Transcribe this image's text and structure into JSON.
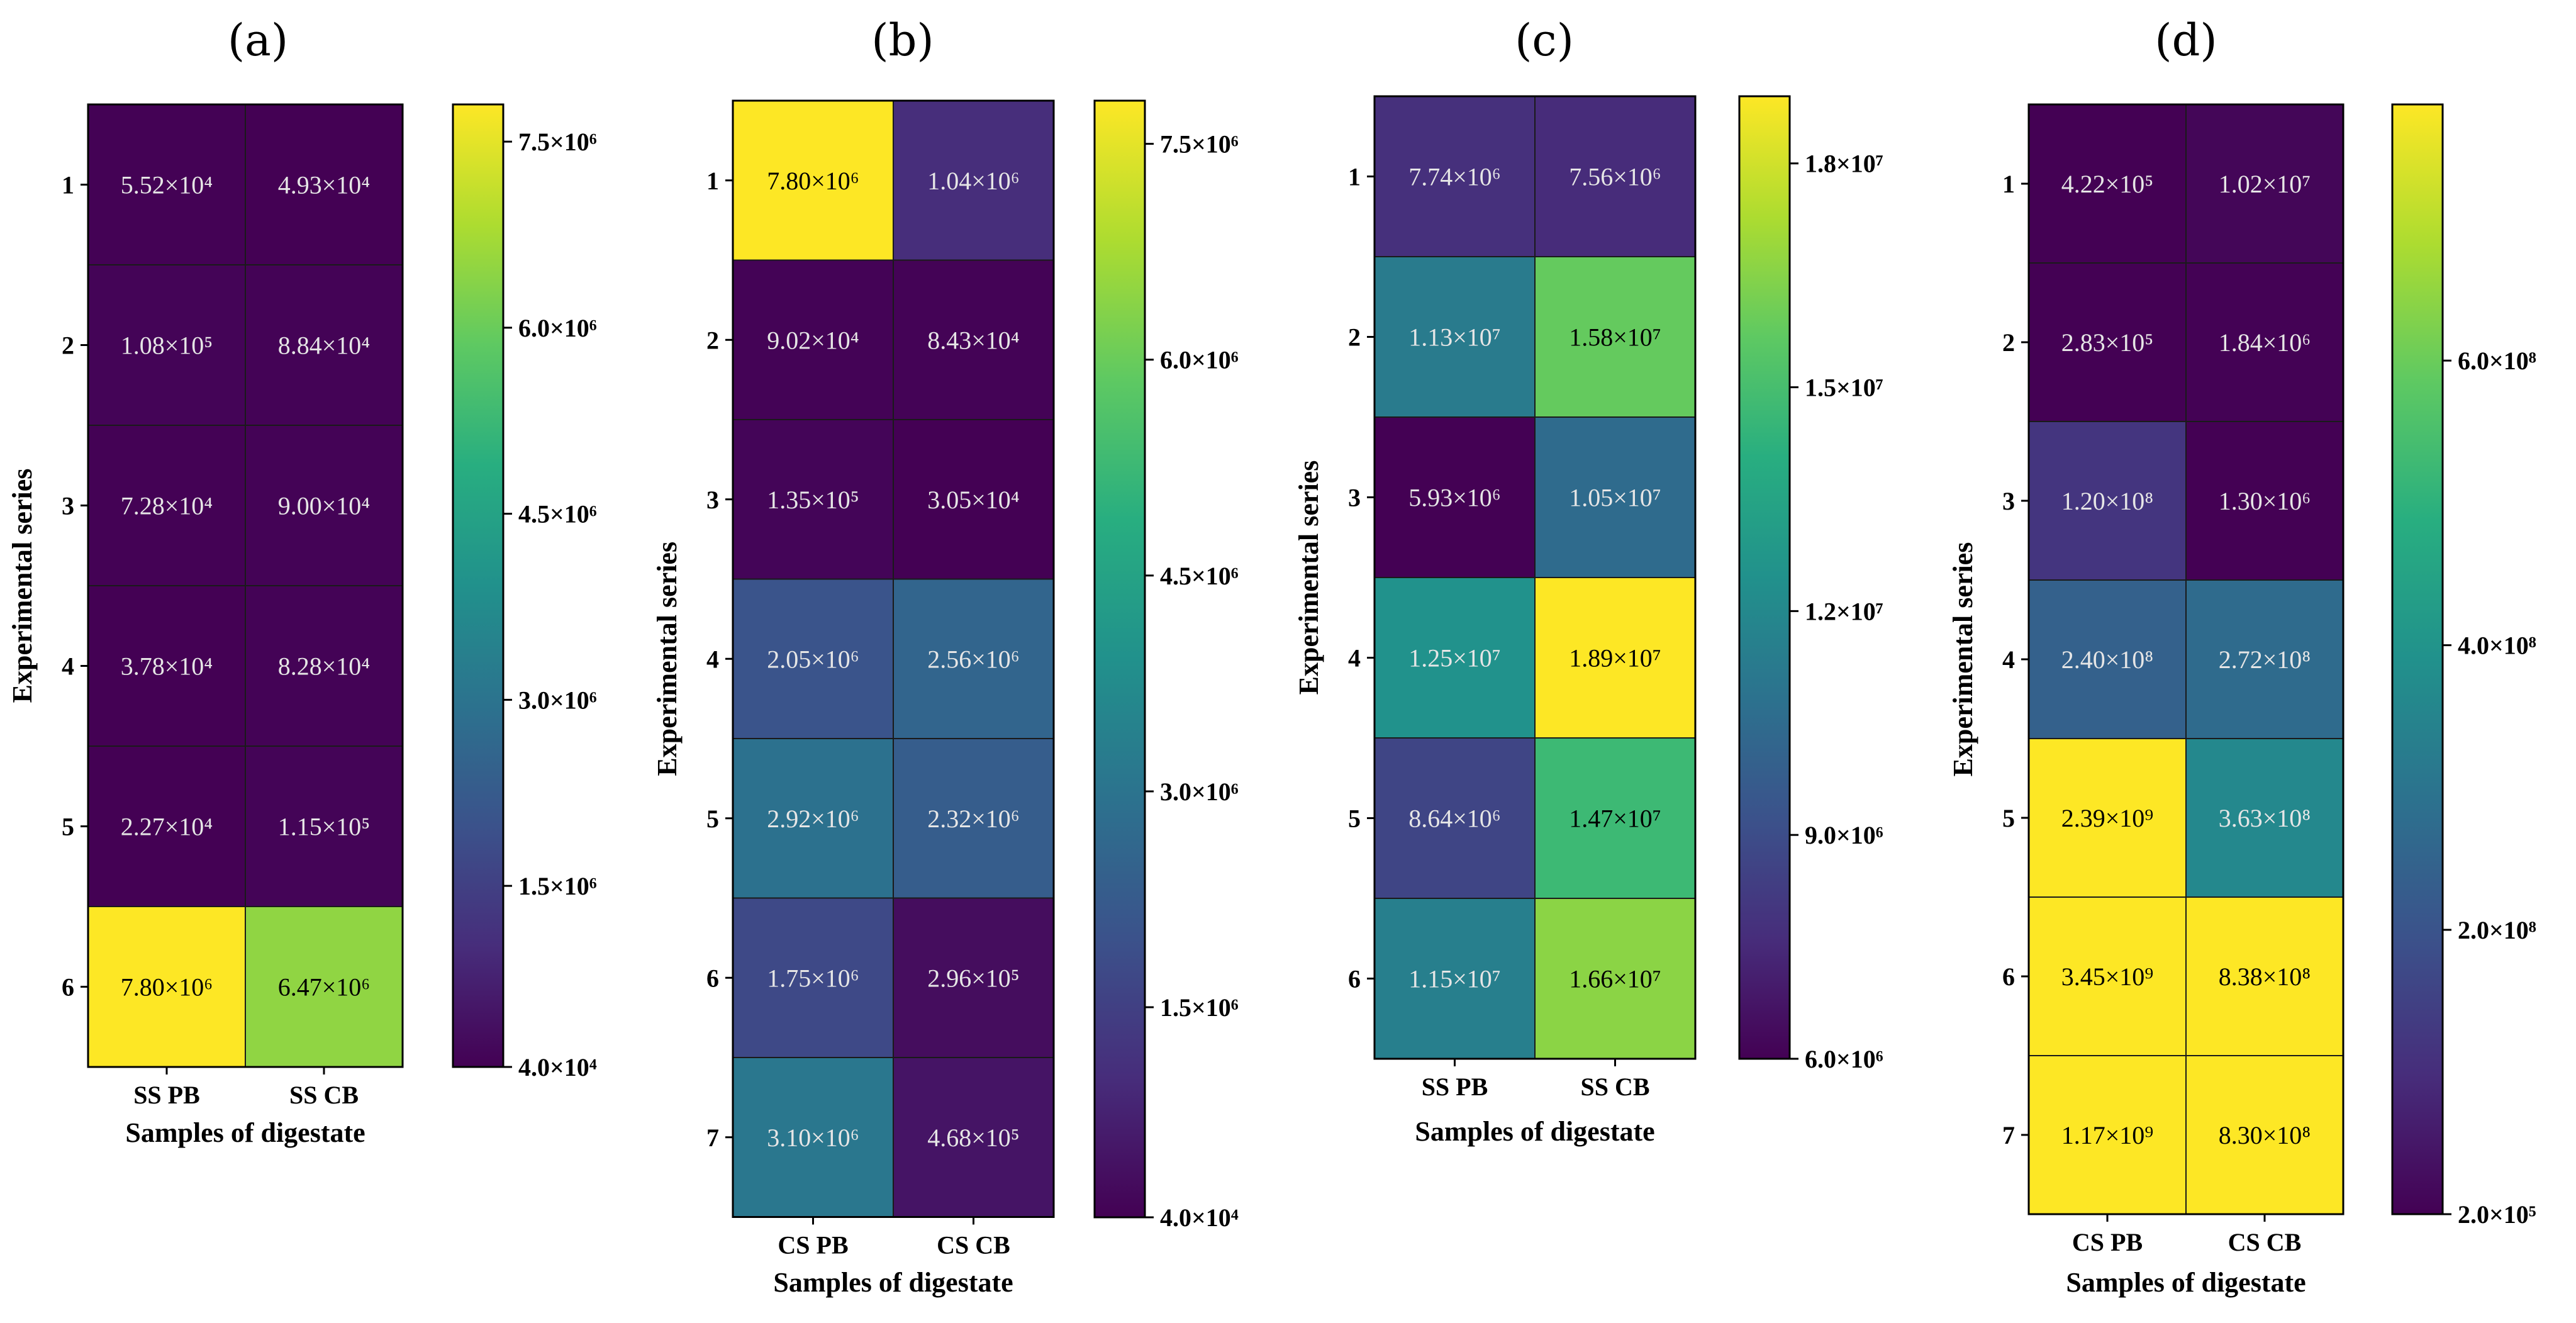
{
  "chart_data": [
    {
      "type": "heatmap",
      "title": "(a)",
      "xlabel": "Samples of digestate",
      "ylabel": "Experimental series",
      "x_categories": [
        "SS PB",
        "SS CB"
      ],
      "y_categories": [
        "1",
        "2",
        "3",
        "4",
        "5",
        "6"
      ],
      "values": [
        [
          55200,
          49300
        ],
        [
          108000,
          88400
        ],
        [
          72800,
          90000
        ],
        [
          37800,
          82800
        ],
        [
          22700,
          115000
        ],
        [
          7800000,
          6470000
        ]
      ],
      "value_labels": [
        [
          "5.52×10⁴",
          "4.93×10⁴"
        ],
        [
          "1.08×10⁵",
          "8.84×10⁴"
        ],
        [
          "7.28×10⁴",
          "9.00×10⁴"
        ],
        [
          "3.78×10⁴",
          "8.28×10⁴"
        ],
        [
          "2.27×10⁴",
          "1.15×10⁵"
        ],
        [
          "7.80×10⁶",
          "6.47×10⁶"
        ]
      ],
      "colorbar": {
        "range": [
          40000,
          7800000
        ],
        "ticks": [
          40000,
          1500000,
          3000000,
          4500000,
          6000000,
          7500000
        ],
        "tick_labels": [
          "4.0×10⁴",
          "1.5×10⁶",
          "3.0×10⁶",
          "4.5×10⁶",
          "6.0×10⁶",
          "7.5×10⁶"
        ]
      }
    },
    {
      "type": "heatmap",
      "title": "(b)",
      "xlabel": "Samples of digestate",
      "ylabel": "Experimental series",
      "x_categories": [
        "CS PB",
        "CS CB"
      ],
      "y_categories": [
        "1",
        "2",
        "3",
        "4",
        "5",
        "6",
        "7"
      ],
      "values": [
        [
          7800000,
          1040000
        ],
        [
          90200,
          84300
        ],
        [
          135000,
          30500
        ],
        [
          2050000,
          2560000
        ],
        [
          2920000,
          2320000
        ],
        [
          1750000,
          296000
        ],
        [
          3100000,
          468000
        ]
      ],
      "value_labels": [
        [
          "7.80×10⁶",
          "1.04×10⁶"
        ],
        [
          "9.02×10⁴",
          "8.43×10⁴"
        ],
        [
          "1.35×10⁵",
          "3.05×10⁴"
        ],
        [
          "2.05×10⁶",
          "2.56×10⁶"
        ],
        [
          "2.92×10⁶",
          "2.32×10⁶"
        ],
        [
          "1.75×10⁶",
          "2.96×10⁵"
        ],
        [
          "3.10×10⁶",
          "4.68×10⁵"
        ]
      ],
      "colorbar": {
        "range": [
          40000,
          7800000
        ],
        "ticks": [
          40000,
          1500000,
          3000000,
          4500000,
          6000000,
          7500000
        ],
        "tick_labels": [
          "4.0×10⁴",
          "1.5×10⁶",
          "3.0×10⁶",
          "4.5×10⁶",
          "6.0×10⁶",
          "7.5×10⁶"
        ]
      }
    },
    {
      "type": "heatmap",
      "title": "(c)",
      "xlabel": "Samples of digestate",
      "ylabel": "Experimental series",
      "x_categories": [
        "SS PB",
        "SS CB"
      ],
      "y_categories": [
        "1",
        "2",
        "3",
        "4",
        "5",
        "6"
      ],
      "values": [
        [
          7740000,
          7560000
        ],
        [
          11300000,
          15800000
        ],
        [
          5930000,
          10500000
        ],
        [
          12500000,
          18900000
        ],
        [
          8640000,
          14700000
        ],
        [
          11500000,
          16600000
        ]
      ],
      "value_labels": [
        [
          "7.74×10⁶",
          "7.56×10⁶"
        ],
        [
          "1.13×10⁷",
          "1.58×10⁷"
        ],
        [
          "5.93×10⁶",
          "1.05×10⁷"
        ],
        [
          "1.25×10⁷",
          "1.89×10⁷"
        ],
        [
          "8.64×10⁶",
          "1.47×10⁷"
        ],
        [
          "1.15×10⁷",
          "1.66×10⁷"
        ]
      ],
      "colorbar": {
        "range": [
          6000000,
          18900000
        ],
        "ticks": [
          6000000,
          9000000,
          12000000,
          15000000,
          18000000
        ],
        "tick_labels": [
          "6.0×10⁶",
          "9.0×10⁶",
          "1.2×10⁷",
          "1.5×10⁷",
          "1.8×10⁷"
        ]
      }
    },
    {
      "type": "heatmap",
      "title": "(d)",
      "xlabel": "Samples of digestate",
      "ylabel": "Experimental series",
      "x_categories": [
        "CS PB",
        "CS CB"
      ],
      "y_categories": [
        "1",
        "2",
        "3",
        "4",
        "5",
        "6",
        "7"
      ],
      "values": [
        [
          422000,
          10200000
        ],
        [
          283000,
          1840000
        ],
        [
          120000000,
          1300000
        ],
        [
          240000000,
          272000000
        ],
        [
          2390000000,
          363000000
        ],
        [
          3450000000,
          838000000
        ],
        [
          1170000000,
          830000000
        ]
      ],
      "value_labels": [
        [
          "4.22×10⁵",
          "1.02×10⁷"
        ],
        [
          "2.83×10⁵",
          "1.84×10⁶"
        ],
        [
          "1.20×10⁸",
          "1.30×10⁶"
        ],
        [
          "2.40×10⁸",
          "2.72×10⁸"
        ],
        [
          "2.39×10⁹",
          "3.63×10⁸"
        ],
        [
          "3.45×10⁹",
          "8.38×10⁸"
        ],
        [
          "1.17×10⁹",
          "8.30×10⁸"
        ]
      ],
      "colorbar": {
        "range": [
          200000,
          780000000
        ],
        "ticks": [
          200000,
          200000000,
          400000000,
          600000000
        ],
        "tick_labels": [
          "2.0×10⁵",
          "2.0×10⁸",
          "4.0×10⁸",
          "6.0×10⁸"
        ]
      }
    }
  ]
}
